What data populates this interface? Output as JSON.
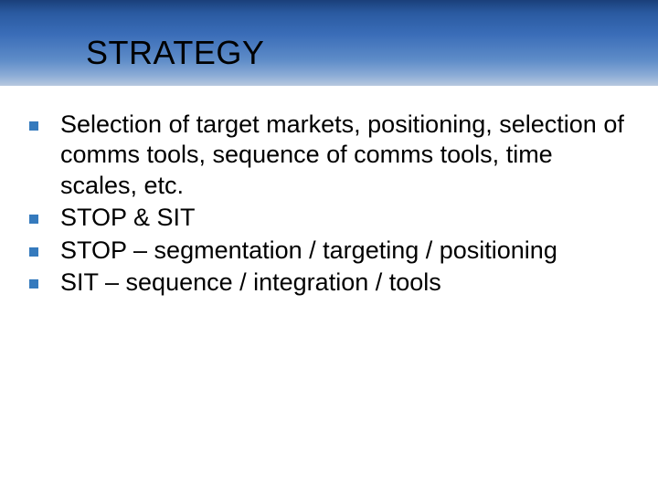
{
  "slide": {
    "title": "STRATEGY",
    "title_color": "#000000",
    "title_fontsize": 36,
    "header_gradient": [
      "#1a3f7a",
      "#2a5aa0",
      "#3a6db8",
      "#5e8cc8",
      "#8cacd6",
      "#b8c9df"
    ],
    "background_color": "#ffffff",
    "bullet_color": "#357abd",
    "bullet_size": 10,
    "body_fontsize": 27,
    "body_color": "#000000",
    "bullets": [
      "Selection of target markets, positioning, selection of comms tools, sequence of comms tools, time scales, etc.",
      "STOP & SIT",
      "STOP – segmentation / targeting / positioning",
      "SIT – sequence / integration / tools"
    ]
  }
}
